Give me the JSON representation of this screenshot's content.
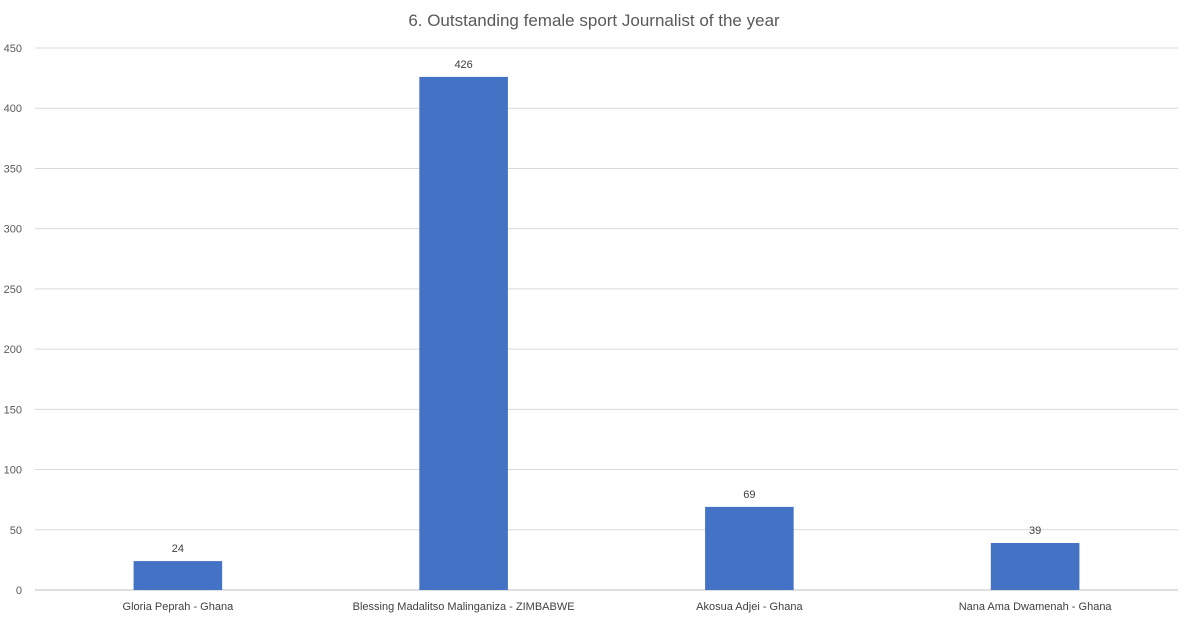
{
  "chart_data": {
    "type": "bar",
    "title": "6. Outstanding female sport Journalist of the year",
    "categories": [
      "Gloria Peprah - Ghana",
      "Blessing Madalitso Malinganiza - ZIMBABWE",
      "Akosua Adjei - Ghana",
      "Nana Ama Dwamenah - Ghana"
    ],
    "values": [
      24,
      426,
      69,
      39
    ],
    "data_labels": [
      "24",
      "426",
      "69",
      "39"
    ],
    "ylim": [
      0,
      450
    ],
    "yticks": [
      0,
      50,
      100,
      150,
      200,
      250,
      300,
      350,
      400,
      450
    ],
    "ytick_labels": [
      "0",
      "50",
      "100",
      "150",
      "200",
      "250",
      "300",
      "350",
      "400",
      "450"
    ],
    "xlabel": "",
    "ylabel": "",
    "grid": true,
    "legend": "none",
    "bar_color": "#4472C4"
  }
}
